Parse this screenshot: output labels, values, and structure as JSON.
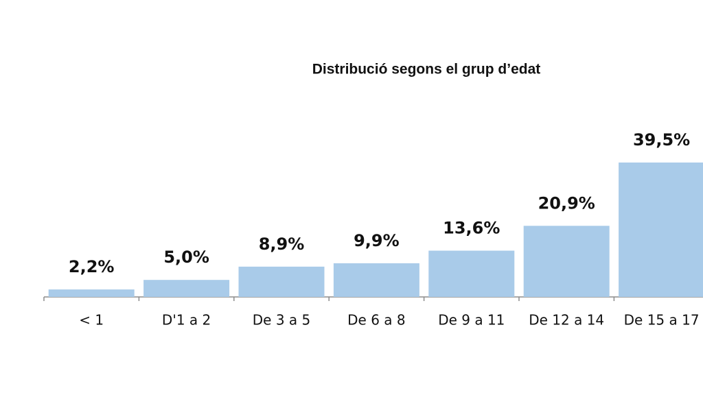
{
  "chart_data": {
    "type": "bar",
    "title": "Distribució segons el grup d’edat",
    "categories": [
      "< 1",
      "D'1 a 2",
      "De 3 a 5",
      "De 6 a 8",
      "De 9 a 11",
      "De 12 a 14",
      "De 15 a 17"
    ],
    "values": [
      2.2,
      5.0,
      8.9,
      9.9,
      13.6,
      20.9,
      39.5
    ],
    "value_labels": [
      "2,2%",
      "5,0%",
      "8,9%",
      "9,9%",
      "13,6%",
      "20,9%",
      "39,5%"
    ],
    "color": "#a9cbe9"
  }
}
